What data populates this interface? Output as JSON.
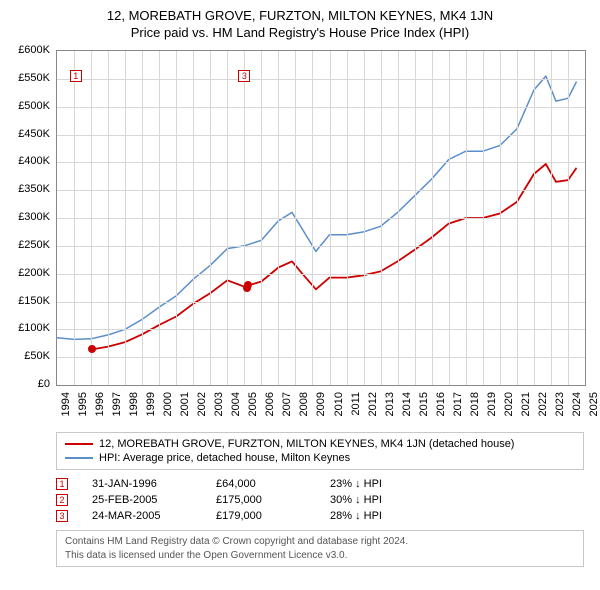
{
  "title": "12, MOREBATH GROVE, FURZTON, MILTON KEYNES, MK4 1JN",
  "subtitle": "Price paid vs. HM Land Registry's House Price Index (HPI)",
  "chart": {
    "type": "line",
    "background_color": "#ffffff",
    "grid_color": "#d7d7d7",
    "border_color": "#888888",
    "x_axis": {
      "min": 1994,
      "max": 2025,
      "ticks": [
        1994,
        1995,
        1996,
        1997,
        1998,
        1999,
        2000,
        2001,
        2002,
        2003,
        2004,
        2005,
        2006,
        2007,
        2008,
        2009,
        2010,
        2011,
        2012,
        2013,
        2014,
        2015,
        2016,
        2017,
        2018,
        2019,
        2020,
        2021,
        2022,
        2023,
        2024,
        2025
      ],
      "label_fontsize": 11
    },
    "y_axis": {
      "min": 0,
      "max": 600000,
      "ticks": [
        0,
        50000,
        100000,
        150000,
        200000,
        250000,
        300000,
        350000,
        400000,
        450000,
        500000,
        550000,
        600000
      ],
      "tick_labels": [
        "£0",
        "£50K",
        "£100K",
        "£150K",
        "£200K",
        "£250K",
        "£300K",
        "£350K",
        "£400K",
        "£450K",
        "£500K",
        "£550K",
        "£600K"
      ],
      "label_fontsize": 11
    },
    "series": [
      {
        "id": "hpi",
        "label": "HPI: Average price, detached house, Milton Keynes",
        "color": "#5a8ecb",
        "line_width": 1.5,
        "data": [
          [
            1994.0,
            85000
          ],
          [
            1995.0,
            82000
          ],
          [
            1996.0,
            83000
          ],
          [
            1997.0,
            90000
          ],
          [
            1998.0,
            100000
          ],
          [
            1999.0,
            118000
          ],
          [
            2000.0,
            140000
          ],
          [
            2001.0,
            160000
          ],
          [
            2002.0,
            190000
          ],
          [
            2003.0,
            215000
          ],
          [
            2004.0,
            245000
          ],
          [
            2005.0,
            250000
          ],
          [
            2006.0,
            260000
          ],
          [
            2007.0,
            295000
          ],
          [
            2007.8,
            310000
          ],
          [
            2008.4,
            280000
          ],
          [
            2009.2,
            240000
          ],
          [
            2010.0,
            270000
          ],
          [
            2011.0,
            270000
          ],
          [
            2012.0,
            275000
          ],
          [
            2013.0,
            285000
          ],
          [
            2014.0,
            310000
          ],
          [
            2015.0,
            340000
          ],
          [
            2016.0,
            370000
          ],
          [
            2017.0,
            405000
          ],
          [
            2018.0,
            420000
          ],
          [
            2019.0,
            420000
          ],
          [
            2020.0,
            430000
          ],
          [
            2021.0,
            460000
          ],
          [
            2022.0,
            530000
          ],
          [
            2022.7,
            555000
          ],
          [
            2023.3,
            510000
          ],
          [
            2024.0,
            515000
          ],
          [
            2024.5,
            545000
          ]
        ]
      },
      {
        "id": "property",
        "label": "12, MOREBATH GROVE, FURZTON, MILTON KEYNES, MK4 1JN (detached house)",
        "color": "#cc0000",
        "line_width": 1.8,
        "data": [
          [
            1996.08,
            64000
          ],
          [
            1997.0,
            69000
          ],
          [
            1998.0,
            77000
          ],
          [
            1999.0,
            91000
          ],
          [
            2000.0,
            108000
          ],
          [
            2001.0,
            123000
          ],
          [
            2002.0,
            146000
          ],
          [
            2003.0,
            165000
          ],
          [
            2004.0,
            188000
          ],
          [
            2005.15,
            175000
          ],
          [
            2005.23,
            179000
          ],
          [
            2006.0,
            186000
          ],
          [
            2007.0,
            211000
          ],
          [
            2007.8,
            222000
          ],
          [
            2008.4,
            200000
          ],
          [
            2009.2,
            172000
          ],
          [
            2010.0,
            193000
          ],
          [
            2011.0,
            193000
          ],
          [
            2012.0,
            197000
          ],
          [
            2013.0,
            204000
          ],
          [
            2014.0,
            222000
          ],
          [
            2015.0,
            243000
          ],
          [
            2016.0,
            265000
          ],
          [
            2017.0,
            290000
          ],
          [
            2018.0,
            300000
          ],
          [
            2019.0,
            300000
          ],
          [
            2020.0,
            308000
          ],
          [
            2021.0,
            329000
          ],
          [
            2022.0,
            379000
          ],
          [
            2022.7,
            397000
          ],
          [
            2023.3,
            365000
          ],
          [
            2024.0,
            368000
          ],
          [
            2024.5,
            390000
          ]
        ]
      }
    ],
    "sale_markers": [
      {
        "n": "1",
        "year": 1996.08,
        "price": 64000,
        "annot_year": 1995.1,
        "annot_price": 555000
      },
      {
        "n": "2",
        "year": 2005.15,
        "price": 175000,
        "annot_year": null,
        "annot_price": null
      },
      {
        "n": "3",
        "year": 2005.23,
        "price": 179000,
        "annot_year": 2005.0,
        "annot_price": 555000
      }
    ]
  },
  "legend": [
    {
      "color": "#cc0000",
      "label": "12, MOREBATH GROVE, FURZTON, MILTON KEYNES, MK4 1JN (detached house)"
    },
    {
      "color": "#5a8ecb",
      "label": "HPI: Average price, detached house, Milton Keynes"
    }
  ],
  "sales_table": [
    {
      "n": "1",
      "date": "31-JAN-1996",
      "price": "£64,000",
      "diff": "23% ↓ HPI"
    },
    {
      "n": "2",
      "date": "25-FEB-2005",
      "price": "£175,000",
      "diff": "30% ↓ HPI"
    },
    {
      "n": "3",
      "date": "24-MAR-2005",
      "price": "£179,000",
      "diff": "28% ↓ HPI"
    }
  ],
  "footer": {
    "line1": "Contains HM Land Registry data © Crown copyright and database right 2024.",
    "line2": "This data is licensed under the Open Government Licence v3.0."
  }
}
